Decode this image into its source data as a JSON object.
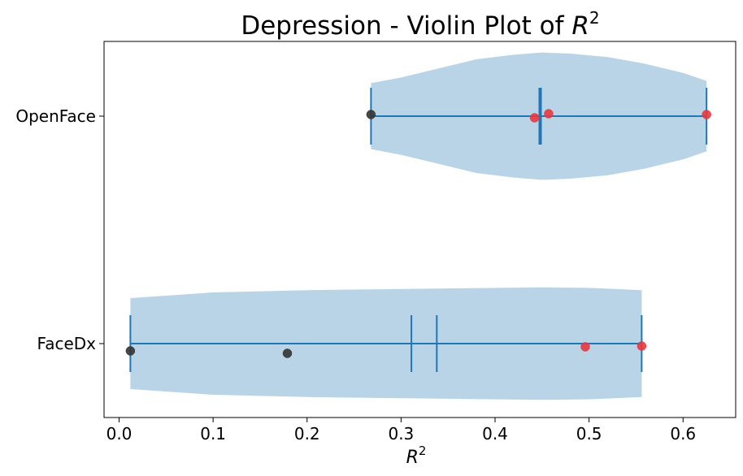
{
  "chart_data": {
    "type": "violin",
    "orientation": "horizontal",
    "title": "Depression - Violin Plot of R^2",
    "xlabel": "R^2",
    "ylabel": "",
    "xlim": [
      -0.016,
      0.656
    ],
    "xticks": [
      0.0,
      0.1,
      0.2,
      0.3,
      0.4,
      0.5,
      0.6
    ],
    "xtick_labels": [
      "0.0",
      "0.1",
      "0.2",
      "0.3",
      "0.4",
      "0.5",
      "0.6"
    ],
    "categories": [
      "OpenFace",
      "FaceDx"
    ],
    "grid": false,
    "colors": {
      "violin_fill": "#bad4e7",
      "lines": "#1f77b4",
      "point_dark": "#333333",
      "point_red": "#e8383f"
    },
    "violins": [
      {
        "category": "OpenFace",
        "min": 0.268,
        "max": 0.625,
        "mean": 0.448,
        "median": 0.448,
        "density": [
          [
            0.268,
            0.29
          ],
          [
            0.3,
            0.34
          ],
          [
            0.34,
            0.42
          ],
          [
            0.38,
            0.5
          ],
          [
            0.42,
            0.54
          ],
          [
            0.45,
            0.56
          ],
          [
            0.48,
            0.55
          ],
          [
            0.52,
            0.52
          ],
          [
            0.56,
            0.46
          ],
          [
            0.6,
            0.38
          ],
          [
            0.625,
            0.31
          ]
        ],
        "points": [
          {
            "x": 0.268,
            "color": "dark"
          },
          {
            "x": 0.442,
            "color": "red"
          },
          {
            "x": 0.457,
            "color": "red"
          },
          {
            "x": 0.625,
            "color": "red"
          }
        ]
      },
      {
        "category": "FaceDx",
        "min": 0.012,
        "max": 0.556,
        "mean": 0.311,
        "median": 0.338,
        "density": [
          [
            0.012,
            0.4
          ],
          [
            0.1,
            0.45
          ],
          [
            0.2,
            0.47
          ],
          [
            0.3,
            0.48
          ],
          [
            0.4,
            0.49
          ],
          [
            0.45,
            0.495
          ],
          [
            0.5,
            0.49
          ],
          [
            0.556,
            0.47
          ]
        ],
        "points": [
          {
            "x": 0.012,
            "color": "dark"
          },
          {
            "x": 0.179,
            "color": "dark"
          },
          {
            "x": 0.496,
            "color": "red"
          },
          {
            "x": 0.556,
            "color": "red"
          }
        ]
      }
    ]
  }
}
